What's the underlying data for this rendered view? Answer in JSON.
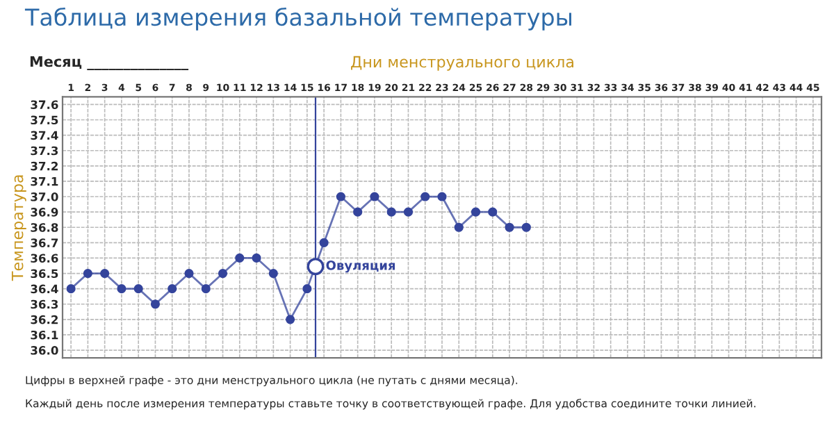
{
  "chart_data": {
    "type": "line",
    "title": "Таблица измерения базальной температуры",
    "xlabel": "Дни менструального цикла",
    "ylabel": "Температура",
    "x": [
      1,
      2,
      3,
      4,
      5,
      6,
      7,
      8,
      9,
      10,
      11,
      12,
      13,
      14,
      15,
      16,
      17,
      18,
      19,
      20,
      21,
      22,
      23,
      24,
      25,
      26,
      27,
      28
    ],
    "series": [
      {
        "color": "#34449c",
        "values": [
          36.4,
          36.5,
          36.5,
          36.4,
          36.4,
          36.3,
          36.4,
          36.5,
          36.4,
          36.5,
          36.6,
          36.6,
          36.5,
          36.2,
          36.4,
          36.7,
          37.0,
          36.9,
          37.0,
          36.9,
          36.9,
          37.0,
          37.0,
          36.8,
          36.9,
          36.9,
          36.8,
          36.8
        ]
      }
    ],
    "xlim": [
      0.5,
      45.5
    ],
    "xticks": [
      1,
      2,
      3,
      4,
      5,
      6,
      7,
      8,
      9,
      10,
      11,
      12,
      13,
      14,
      15,
      16,
      17,
      18,
      19,
      20,
      21,
      22,
      23,
      24,
      25,
      26,
      27,
      28,
      29,
      30,
      31,
      32,
      33,
      34,
      35,
      36,
      37,
      38,
      39,
      40,
      41,
      42,
      43,
      44,
      45
    ],
    "ylim": [
      35.95,
      37.65
    ],
    "yticks": [
      {
        "value": 36.0,
        "label": "36.0"
      },
      36.1,
      36.2,
      36.3,
      36.4,
      36.5,
      36.6,
      36.7,
      36.8,
      36.9,
      {
        "value": 37.0,
        "label": "37.0"
      },
      37.1,
      37.2,
      37.3,
      37.4,
      37.5,
      37.6
    ],
    "grid": true,
    "marker": "circle",
    "line_style": "solid",
    "ref_lines": [
      {
        "axis": "x",
        "value": 15.5,
        "label": "Овуляция",
        "color": "#34449c"
      }
    ],
    "annotations": [
      "Месяц ______________",
      "Цифры в верхней графе - это дни менструального цикла (не путать с днями месяца).",
      "Каждый день после измерения температуры ставьте точку в соответствующей графе. Для удобства соедините точки линией."
    ]
  }
}
